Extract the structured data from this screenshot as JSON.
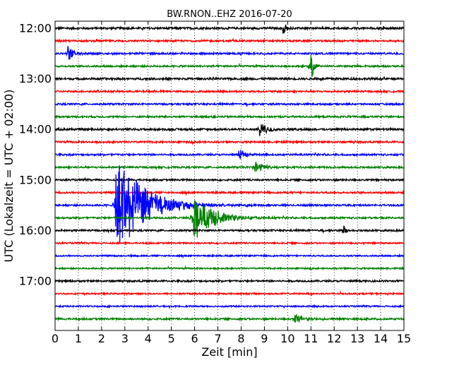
{
  "chart_data": {
    "type": "line",
    "title": "BW.RNON..EHZ 2016-07-20",
    "xlabel": "Zeit  [min]",
    "ylabel": "UTC (Lokalzeit = UTC + 02:00)",
    "xlim": [
      0,
      15
    ],
    "x_ticks": [
      "0",
      "1",
      "2",
      "3",
      "4",
      "5",
      "6",
      "7",
      "8",
      "9",
      "10",
      "11",
      "12",
      "13",
      "14",
      "15"
    ],
    "y_tick_labels": [
      "12:00",
      "13:00",
      "14:00",
      "15:00",
      "16:00",
      "17:00"
    ],
    "grid": "vertical-dotted",
    "trace_colors": [
      "#000000",
      "#ff0000",
      "#0000ff",
      "#008000"
    ],
    "traces": [
      {
        "start": "12:00",
        "color": "#000000",
        "noise": 0.35,
        "events": [
          {
            "t": 9.8,
            "amp": 0.9,
            "decay": 0.15
          }
        ]
      },
      {
        "start": "12:15",
        "color": "#ff0000",
        "noise": 0.3,
        "events": []
      },
      {
        "start": "12:30",
        "color": "#0000ff",
        "noise": 0.3,
        "events": [
          {
            "t": 0.55,
            "amp": 1.1,
            "decay": 0.25
          }
        ]
      },
      {
        "start": "12:45",
        "color": "#008000",
        "noise": 0.3,
        "events": [
          {
            "t": 11.0,
            "amp": 2.5,
            "decay": 0.12
          }
        ]
      },
      {
        "start": "13:00",
        "color": "#000000",
        "noise": 0.35,
        "events": []
      },
      {
        "start": "13:15",
        "color": "#ff0000",
        "noise": 0.3,
        "events": []
      },
      {
        "start": "13:30",
        "color": "#0000ff",
        "noise": 0.3,
        "events": []
      },
      {
        "start": "13:45",
        "color": "#008000",
        "noise": 0.3,
        "events": []
      },
      {
        "start": "14:00",
        "color": "#000000",
        "noise": 0.35,
        "events": [
          {
            "t": 8.8,
            "amp": 1.3,
            "decay": 0.25
          }
        ]
      },
      {
        "start": "14:15",
        "color": "#ff0000",
        "noise": 0.3,
        "events": []
      },
      {
        "start": "14:30",
        "color": "#0000ff",
        "noise": 0.3,
        "events": [
          {
            "t": 7.9,
            "amp": 0.9,
            "decay": 0.25
          }
        ]
      },
      {
        "start": "14:45",
        "color": "#008000",
        "noise": 0.3,
        "events": [
          {
            "t": 8.6,
            "amp": 1.2,
            "decay": 0.3
          }
        ]
      },
      {
        "start": "15:00",
        "color": "#000000",
        "noise": 0.3,
        "events": []
      },
      {
        "start": "15:15",
        "color": "#ff0000",
        "noise": 0.3,
        "events": []
      },
      {
        "start": "15:30",
        "color": "#0000ff",
        "noise": 0.3,
        "events": [
          {
            "t": 2.6,
            "amp": 8.0,
            "decay": 1.1
          }
        ]
      },
      {
        "start": "15:45",
        "color": "#008000",
        "noise": 0.3,
        "events": [
          {
            "t": 5.9,
            "amp": 3.5,
            "decay": 0.8
          }
        ]
      },
      {
        "start": "16:00",
        "color": "#000000",
        "noise": 0.3,
        "events": [
          {
            "t": 12.4,
            "amp": 0.9,
            "decay": 0.08
          }
        ]
      },
      {
        "start": "16:15",
        "color": "#ff0000",
        "noise": 0.25,
        "events": []
      },
      {
        "start": "16:30",
        "color": "#0000ff",
        "noise": 0.25,
        "events": []
      },
      {
        "start": "16:45",
        "color": "#008000",
        "noise": 0.25,
        "events": []
      },
      {
        "start": "17:00",
        "color": "#000000",
        "noise": 0.3,
        "events": []
      },
      {
        "start": "17:15",
        "color": "#ff0000",
        "noise": 0.25,
        "events": []
      },
      {
        "start": "17:30",
        "color": "#0000ff",
        "noise": 0.25,
        "events": []
      },
      {
        "start": "17:45",
        "color": "#008000",
        "noise": 0.3,
        "events": [
          {
            "t": 10.3,
            "amp": 0.9,
            "decay": 0.3
          }
        ]
      }
    ]
  }
}
